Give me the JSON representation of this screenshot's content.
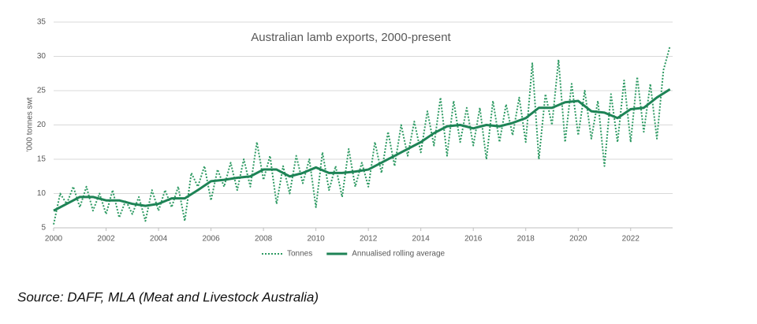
{
  "chart_data": {
    "type": "line",
    "title": "Australian lamb exports, 2000-present",
    "y_label": "'000 tonnes swt",
    "xlim": [
      2000,
      2023.6
    ],
    "xticks": [
      2000,
      2002,
      2004,
      2006,
      2008,
      2010,
      2012,
      2014,
      2016,
      2018,
      2020,
      2022
    ],
    "ylim": [
      5,
      35
    ],
    "yticks": [
      5,
      10,
      15,
      20,
      25,
      30,
      35
    ],
    "grid": true,
    "legend": "bottom",
    "series": [
      {
        "name": "Tonnes",
        "color": "#2e9a63",
        "style": "dotted",
        "x": [
          2000,
          2000.25,
          2000.5,
          2000.75,
          2001,
          2001.25,
          2001.5,
          2001.75,
          2002,
          2002.25,
          2002.5,
          2002.75,
          2003,
          2003.25,
          2003.5,
          2003.75,
          2004,
          2004.25,
          2004.5,
          2004.75,
          2005,
          2005.25,
          2005.5,
          2005.75,
          2006,
          2006.25,
          2006.5,
          2006.75,
          2007,
          2007.25,
          2007.5,
          2007.75,
          2008,
          2008.25,
          2008.5,
          2008.75,
          2009,
          2009.25,
          2009.5,
          2009.75,
          2010,
          2010.25,
          2010.5,
          2010.75,
          2011,
          2011.25,
          2011.5,
          2011.75,
          2012,
          2012.25,
          2012.5,
          2012.75,
          2013,
          2013.25,
          2013.5,
          2013.75,
          2014,
          2014.25,
          2014.5,
          2014.75,
          2015,
          2015.25,
          2015.5,
          2015.75,
          2016,
          2016.25,
          2016.5,
          2016.75,
          2017,
          2017.25,
          2017.5,
          2017.75,
          2018,
          2018.25,
          2018.5,
          2018.75,
          2019,
          2019.25,
          2019.5,
          2019.75,
          2020,
          2020.25,
          2020.5,
          2020.75,
          2021,
          2021.25,
          2021.5,
          2021.75,
          2022,
          2022.25,
          2022.5,
          2022.75,
          2023,
          2023.25,
          2023.5
        ],
        "values": [
          5.5,
          10,
          8.5,
          11,
          8,
          11,
          7.5,
          10,
          7,
          10.5,
          6.5,
          9,
          7,
          9.5,
          6,
          10.5,
          7.5,
          10.5,
          8,
          11,
          6,
          13,
          11,
          14,
          9,
          13.5,
          11,
          14.5,
          10.5,
          15,
          11,
          17.5,
          12,
          15.5,
          8.5,
          14,
          10,
          15.5,
          11.5,
          15,
          8,
          16,
          10.5,
          14,
          9.5,
          16.5,
          11,
          14.5,
          11,
          17.5,
          13,
          19,
          14,
          20,
          15.5,
          20.5,
          16,
          22,
          17,
          24,
          15.5,
          23.5,
          17.5,
          22.5,
          17,
          22.5,
          15,
          23.5,
          17.5,
          23,
          18.5,
          24,
          17.5,
          29,
          15,
          24.5,
          20,
          29.5,
          17.5,
          26,
          18.5,
          25,
          18,
          23.5,
          14,
          24.5,
          17.5,
          26.5,
          17.5,
          27,
          19,
          26,
          18,
          28,
          31.5
        ]
      },
      {
        "name": "Annualised rolling average",
        "color": "#1e8356",
        "style": "solid",
        "x": [
          2000,
          2000.5,
          2001,
          2001.5,
          2002,
          2002.5,
          2003,
          2003.5,
          2004,
          2004.5,
          2005,
          2005.5,
          2006,
          2006.5,
          2007,
          2007.5,
          2008,
          2008.5,
          2009,
          2009.5,
          2010,
          2010.5,
          2011,
          2011.5,
          2012,
          2012.5,
          2013,
          2013.5,
          2014,
          2014.5,
          2015,
          2015.5,
          2016,
          2016.5,
          2017,
          2017.5,
          2018,
          2018.5,
          2019,
          2019.5,
          2020,
          2020.5,
          2021,
          2021.5,
          2022,
          2022.5,
          2023,
          2023.5
        ],
        "values": [
          7.5,
          8.5,
          9.5,
          9.5,
          9,
          9,
          8.5,
          8.2,
          8.5,
          9.3,
          9.3,
          10.5,
          11.8,
          12,
          12.3,
          12.5,
          13.5,
          13.5,
          12.5,
          13,
          13.8,
          13,
          13,
          13.2,
          13.5,
          14.5,
          15.5,
          16.5,
          17.5,
          18.8,
          19.8,
          20,
          19.5,
          20,
          19.8,
          20.3,
          21,
          22.5,
          22.5,
          23.3,
          23.5,
          22,
          21.8,
          21,
          22.3,
          22.5,
          24,
          25.2
        ]
      }
    ]
  },
  "source": "Source: DAFF, MLA (Meat and Livestock Australia)"
}
